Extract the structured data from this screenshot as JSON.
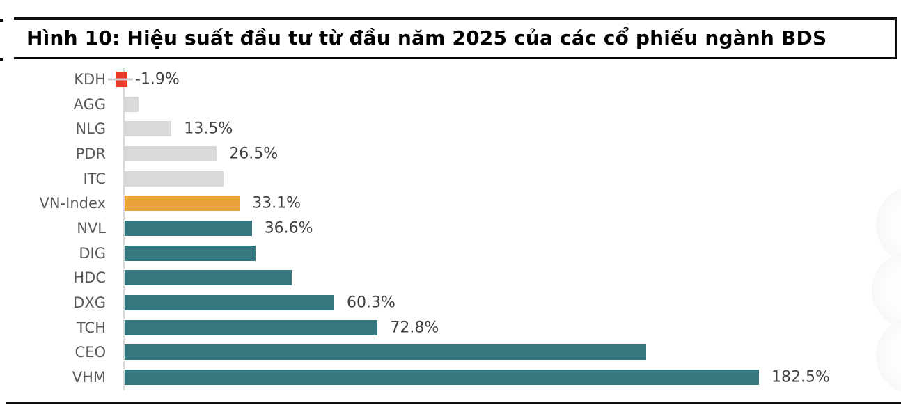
{
  "title": "Hình 10: Hiệu suất đầu tư từ đầu năm 2025 của các cổ phiếu ngành BDS",
  "colors": {
    "negative": "#e8392b",
    "neutral": "#d9d9d9",
    "benchmark": "#e9a23b",
    "positive": "#35787f",
    "axis": "#d9d9d9",
    "category_label": "#595959",
    "value_label": "#404040",
    "rule": "#0d0d0d"
  },
  "chart_data": {
    "type": "bar",
    "orientation": "horizontal",
    "title": "Hình 10: Hiệu suất đầu tư từ đầu năm 2025 của các cổ phiếu ngành BDS",
    "xlabel": "",
    "ylabel": "",
    "unit": "%",
    "grid": false,
    "legend": false,
    "xlim": [
      -10,
      200
    ],
    "categories": [
      "KDH",
      "AGG",
      "NLG",
      "PDR",
      "ITC",
      "VN-Index",
      "NVL",
      "DIG",
      "HDC",
      "DXG",
      "TCH",
      "CEO",
      "VHM"
    ],
    "values": [
      -1.9,
      4.0,
      13.5,
      26.5,
      28.5,
      33.1,
      36.6,
      37.7,
      48.0,
      60.3,
      72.8,
      150.0,
      182.5
    ],
    "data_labels": [
      "-1.9%",
      "",
      "13.5%",
      "26.5%",
      "",
      "33.1%",
      "36.6%",
      "",
      "",
      "60.3%",
      "72.8%",
      "",
      "182.5%"
    ],
    "bar_color_roles": [
      "negative",
      "neutral",
      "neutral",
      "neutral",
      "neutral",
      "benchmark",
      "positive",
      "positive",
      "positive",
      "positive",
      "positive",
      "positive",
      "positive"
    ]
  }
}
